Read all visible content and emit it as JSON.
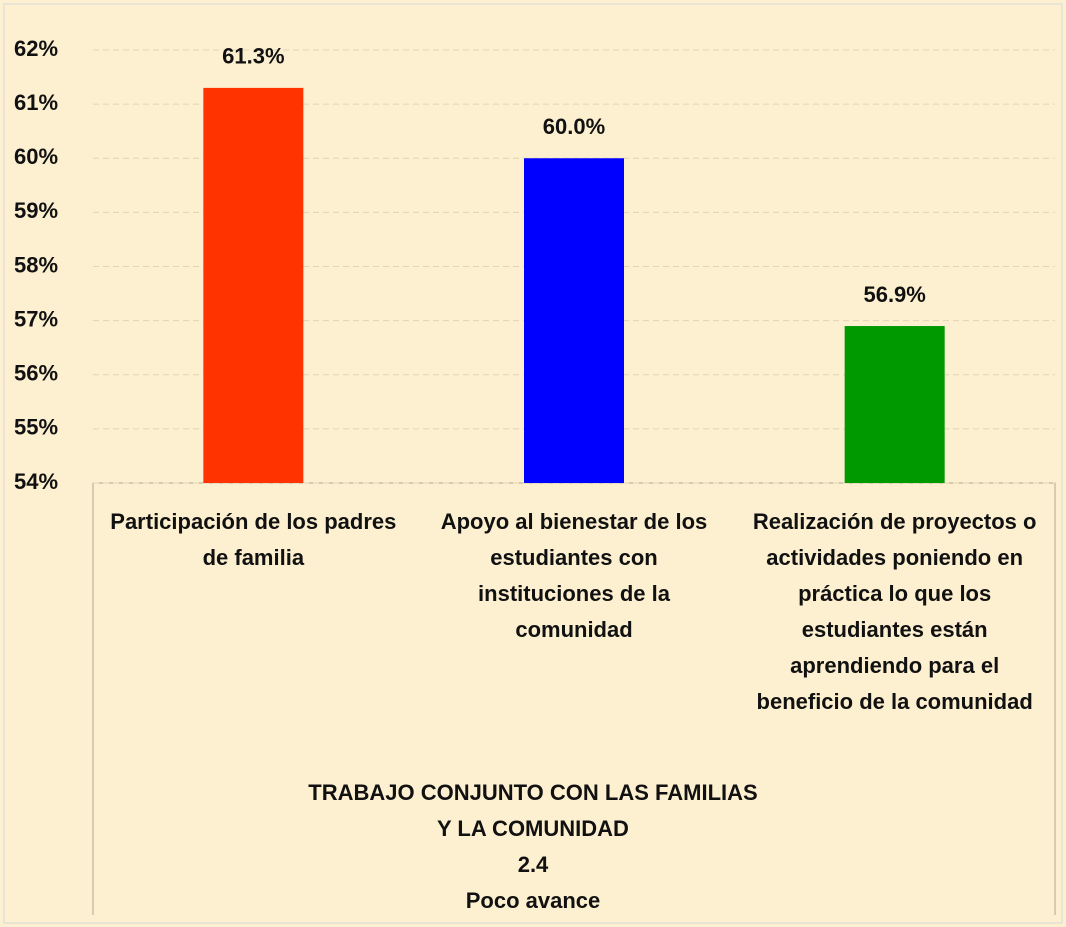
{
  "chart_data": {
    "type": "bar",
    "categories": [
      "Participación de los padres de familia",
      "Apoyo al bienestar de los estudiantes con instituciones de la comunidad",
      "Realización de proyectos o actividades poniendo en práctica lo que los estudiantes están aprendiendo para el beneficio de la comunidad"
    ],
    "values": [
      61.3,
      60.0,
      56.9
    ],
    "value_labels": [
      "61.3%",
      "60.0%",
      "56.9%"
    ],
    "colors": [
      "#ff3300",
      "#0000ff",
      "#009900"
    ],
    "xlabel": "TRABAJO CONJUNTO CON LAS FAMILIAS Y LA COMUNIDAD",
    "annotations": [
      "2.4",
      "Poco avance"
    ],
    "ylim": [
      54,
      62
    ],
    "yticks": [
      {
        "value": 54,
        "label": "54%"
      },
      {
        "value": 55,
        "label": "55%"
      },
      {
        "value": 56,
        "label": "56%"
      },
      {
        "value": 57,
        "label": "57%"
      },
      {
        "value": 58,
        "label": "58%"
      },
      {
        "value": 59,
        "label": "59%"
      },
      {
        "value": 60,
        "label": "60%"
      },
      {
        "value": 61,
        "label": "61%"
      },
      {
        "value": 62,
        "label": "62%"
      }
    ],
    "grid": true
  }
}
